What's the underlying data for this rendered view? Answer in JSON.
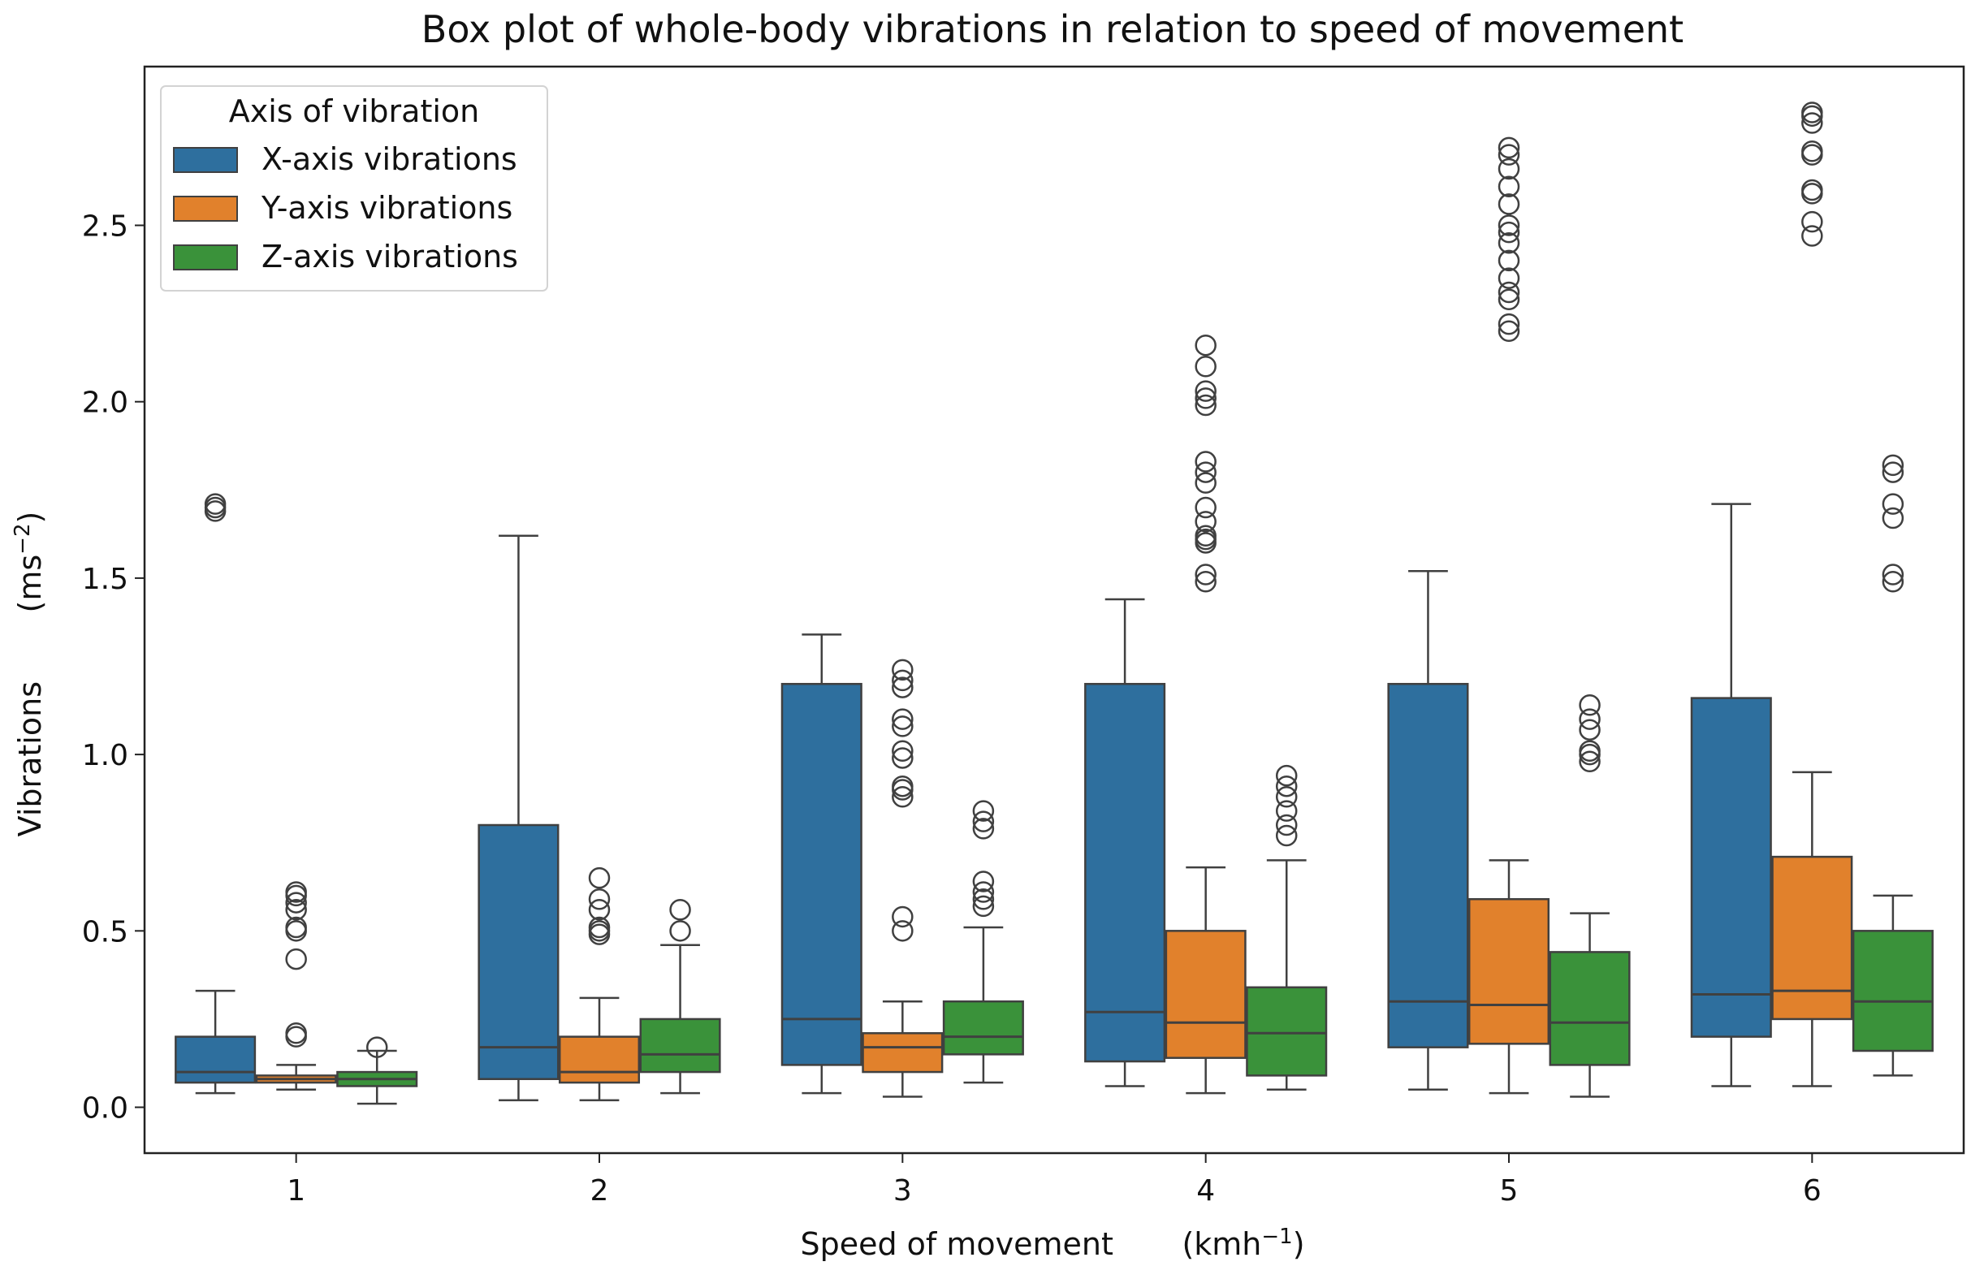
{
  "chart_data": {
    "type": "box",
    "title": "Box plot of whole-body vibrations in relation to speed of movement",
    "xlabel": "Speed of movement       (kmh",
    "xlabel_unit_exp": "−1",
    "xlabel_close": ")",
    "ylabel": "Vibrations       (ms",
    "ylabel_unit_exp": "−2",
    "ylabel_close": ")",
    "ylim": [
      -0.13,
      2.95
    ],
    "yticks": [
      0.0,
      0.5,
      1.0,
      1.5,
      2.0,
      2.5
    ],
    "ytick_labels": [
      "0.0",
      "0.5",
      "1.0",
      "1.5",
      "2.0",
      "2.5"
    ],
    "categories": [
      "1",
      "2",
      "3",
      "4",
      "5",
      "6"
    ],
    "grid": false,
    "legend": {
      "title": "Axis of vibration",
      "placement": "top-left",
      "entries": [
        "X-axis vibrations",
        "Y-axis vibrations",
        "Z-axis vibrations"
      ]
    },
    "series": [
      {
        "name": "X-axis vibrations",
        "color": "#2e6f9e",
        "boxes": [
          {
            "category": "1",
            "whislo": 0.04,
            "q1": 0.07,
            "median": 0.1,
            "q3": 0.2,
            "whishi": 0.33,
            "fliers": [
              1.69,
              1.7,
              1.71
            ]
          },
          {
            "category": "2",
            "whislo": 0.02,
            "q1": 0.08,
            "median": 0.17,
            "q3": 0.8,
            "whishi": 1.62,
            "fliers": []
          },
          {
            "category": "3",
            "whislo": 0.04,
            "q1": 0.12,
            "median": 0.25,
            "q3": 1.2,
            "whishi": 1.34,
            "fliers": []
          },
          {
            "category": "4",
            "whislo": 0.06,
            "q1": 0.13,
            "median": 0.27,
            "q3": 1.2,
            "whishi": 1.44,
            "fliers": []
          },
          {
            "category": "5",
            "whislo": 0.05,
            "q1": 0.17,
            "median": 0.3,
            "q3": 1.2,
            "whishi": 1.52,
            "fliers": []
          },
          {
            "category": "6",
            "whislo": 0.06,
            "q1": 0.2,
            "median": 0.32,
            "q3": 1.16,
            "whishi": 1.71,
            "fliers": []
          }
        ]
      },
      {
        "name": "Y-axis vibrations",
        "color": "#e1812c",
        "boxes": [
          {
            "category": "1",
            "whislo": 0.05,
            "q1": 0.07,
            "median": 0.08,
            "q3": 0.09,
            "whishi": 0.12,
            "fliers": [
              0.2,
              0.21,
              0.42,
              0.5,
              0.51,
              0.56,
              0.58,
              0.6,
              0.61
            ]
          },
          {
            "category": "2",
            "whislo": 0.02,
            "q1": 0.07,
            "median": 0.1,
            "q3": 0.2,
            "whishi": 0.31,
            "fliers": [
              0.49,
              0.5,
              0.51,
              0.56,
              0.59,
              0.65
            ]
          },
          {
            "category": "3",
            "whislo": 0.03,
            "q1": 0.1,
            "median": 0.17,
            "q3": 0.21,
            "whishi": 0.3,
            "fliers": [
              0.5,
              0.54,
              0.88,
              0.9,
              0.91,
              0.99,
              1.01,
              1.08,
              1.1,
              1.19,
              1.21,
              1.24
            ]
          },
          {
            "category": "4",
            "whislo": 0.04,
            "q1": 0.14,
            "median": 0.24,
            "q3": 0.5,
            "whishi": 0.68,
            "fliers": [
              1.49,
              1.51,
              1.6,
              1.61,
              1.62,
              1.66,
              1.7,
              1.77,
              1.8,
              1.83,
              1.99,
              2.01,
              2.03,
              2.1,
              2.16
            ]
          },
          {
            "category": "5",
            "whislo": 0.04,
            "q1": 0.18,
            "median": 0.29,
            "q3": 0.59,
            "whishi": 0.7,
            "fliers": [
              2.2,
              2.22,
              2.29,
              2.31,
              2.35,
              2.4,
              2.45,
              2.48,
              2.5,
              2.56,
              2.61,
              2.66,
              2.7,
              2.72
            ]
          },
          {
            "category": "6",
            "whislo": 0.06,
            "q1": 0.25,
            "median": 0.33,
            "q3": 0.71,
            "whishi": 0.95,
            "fliers": [
              2.47,
              2.51,
              2.59,
              2.6,
              2.7,
              2.71,
              2.79,
              2.81,
              2.82
            ]
          }
        ]
      },
      {
        "name": "Z-axis vibrations",
        "color": "#3a923a",
        "boxes": [
          {
            "category": "1",
            "whislo": 0.01,
            "q1": 0.06,
            "median": 0.08,
            "q3": 0.1,
            "whishi": 0.16,
            "fliers": [
              0.17
            ]
          },
          {
            "category": "2",
            "whislo": 0.04,
            "q1": 0.1,
            "median": 0.15,
            "q3": 0.25,
            "whishi": 0.46,
            "fliers": [
              0.5,
              0.56
            ]
          },
          {
            "category": "3",
            "whislo": 0.07,
            "q1": 0.15,
            "median": 0.2,
            "q3": 0.3,
            "whishi": 0.51,
            "fliers": [
              0.57,
              0.59,
              0.61,
              0.64,
              0.79,
              0.81,
              0.84
            ]
          },
          {
            "category": "4",
            "whislo": 0.05,
            "q1": 0.09,
            "median": 0.21,
            "q3": 0.34,
            "whishi": 0.7,
            "fliers": [
              0.77,
              0.8,
              0.84,
              0.88,
              0.91,
              0.94
            ]
          },
          {
            "category": "5",
            "whislo": 0.03,
            "q1": 0.12,
            "median": 0.24,
            "q3": 0.44,
            "whishi": 0.55,
            "fliers": [
              0.98,
              1.0,
              1.01,
              1.07,
              1.1,
              1.14
            ]
          },
          {
            "category": "6",
            "whislo": 0.09,
            "q1": 0.16,
            "median": 0.3,
            "q3": 0.5,
            "whishi": 0.6,
            "fliers": [
              1.49,
              1.51,
              1.67,
              1.71,
              1.8,
              1.82
            ]
          }
        ]
      }
    ]
  }
}
